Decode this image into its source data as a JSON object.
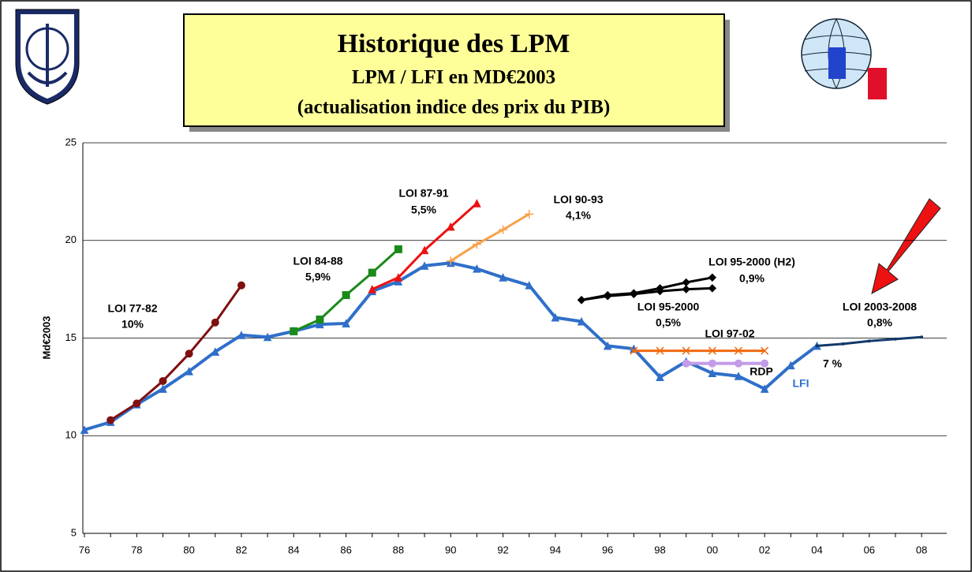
{
  "chart_data": {
    "type": "line",
    "title": "Historique des LPM",
    "subtitle": "LPM / LFI en MD€2003",
    "subtitle2": "(actualisation indice des prix du PIB)",
    "y_label": "Md€2003",
    "categories": [
      "76",
      null,
      "78",
      null,
      "80",
      null,
      "82",
      null,
      "84",
      null,
      "86",
      null,
      "88",
      null,
      "90",
      null,
      "92",
      null,
      "94",
      null,
      "96",
      null,
      "98",
      null,
      "00",
      null,
      "02",
      null,
      "04",
      null,
      "06",
      null,
      "08"
    ],
    "ylim": [
      5,
      25
    ],
    "yticks": [
      5,
      10,
      15,
      20,
      25
    ],
    "grid": true,
    "series": [
      {
        "name": "LFI",
        "color": "#2f6fc9",
        "marker": "triangle",
        "width": 4,
        "values": [
          10.3,
          10.7,
          11.6,
          12.4,
          13.3,
          14.3,
          15.15,
          15.05,
          15.35,
          15.7,
          15.75,
          17.4,
          17.9,
          18.7,
          18.85,
          18.55,
          18.1,
          17.7,
          16.05,
          15.85,
          14.6,
          14.45,
          13.0,
          13.8,
          13.2,
          13.05,
          12.4,
          13.6,
          14.6,
          null,
          null,
          null,
          null
        ]
      },
      {
        "name": "LOI 77-82",
        "rate": "10%",
        "color": "#7f1010",
        "marker": "circle",
        "width": 3,
        "values": [
          null,
          10.8,
          11.65,
          12.8,
          14.2,
          15.8,
          17.7,
          null,
          null,
          null,
          null,
          null,
          null,
          null,
          null,
          null,
          null,
          null,
          null,
          null,
          null,
          null,
          null,
          null,
          null,
          null,
          null,
          null,
          null,
          null,
          null,
          null,
          null
        ]
      },
      {
        "name": "LOI 84-88",
        "rate": "5,9%",
        "color": "#1a8a1a",
        "marker": "square",
        "width": 3,
        "values": [
          null,
          null,
          null,
          null,
          null,
          null,
          null,
          null,
          15.35,
          15.95,
          17.2,
          18.35,
          19.55,
          null,
          null,
          null,
          null,
          null,
          null,
          null,
          null,
          null,
          null,
          null,
          null,
          null,
          null,
          null,
          null,
          null,
          null,
          null,
          null
        ]
      },
      {
        "name": "LOI 87-91",
        "rate": "5,5%",
        "color": "#ee1111",
        "marker": "triangle",
        "width": 3,
        "values": [
          null,
          null,
          null,
          null,
          null,
          null,
          null,
          null,
          null,
          null,
          null,
          17.5,
          18.1,
          19.5,
          20.7,
          21.9,
          null,
          null,
          null,
          null,
          null,
          null,
          null,
          null,
          null,
          null,
          null,
          null,
          null,
          null,
          null,
          null,
          null
        ]
      },
      {
        "name": "LOI 90-93",
        "rate": "4,1%",
        "color": "#f7a24a",
        "marker": "plus",
        "width": 3,
        "values": [
          null,
          null,
          null,
          null,
          null,
          null,
          null,
          null,
          null,
          null,
          null,
          null,
          null,
          null,
          18.95,
          19.8,
          20.55,
          21.35,
          null,
          null,
          null,
          null,
          null,
          null,
          null,
          null,
          null,
          null,
          null,
          null,
          null,
          null,
          null
        ]
      },
      {
        "name": "LOI 95-2000 (H2)",
        "rate": "0,9%",
        "color": "#000000",
        "marker": "diamond",
        "width": 3,
        "values": [
          null,
          null,
          null,
          null,
          null,
          null,
          null,
          null,
          null,
          null,
          null,
          null,
          null,
          null,
          null,
          null,
          null,
          null,
          null,
          16.95,
          17.2,
          17.3,
          17.55,
          17.85,
          18.1,
          null,
          null,
          null,
          null,
          null,
          null,
          null,
          null
        ]
      },
      {
        "name": "LOI 95-2000",
        "rate": "0,5%",
        "color": "#000000",
        "marker": "diamond",
        "width": 3,
        "values": [
          null,
          null,
          null,
          null,
          null,
          null,
          null,
          null,
          null,
          null,
          null,
          null,
          null,
          null,
          null,
          null,
          null,
          null,
          null,
          16.95,
          17.15,
          17.25,
          17.4,
          17.5,
          17.55,
          null,
          null,
          null,
          null,
          null,
          null,
          null,
          null
        ]
      },
      {
        "name": "LOI 97-02",
        "color": "#f06a10",
        "marker": "x",
        "width": 3,
        "values": [
          null,
          null,
          null,
          null,
          null,
          null,
          null,
          null,
          null,
          null,
          null,
          null,
          null,
          null,
          null,
          null,
          null,
          null,
          null,
          null,
          null,
          14.35,
          14.35,
          14.35,
          14.35,
          14.35,
          14.35,
          null,
          null,
          null,
          null,
          null,
          null
        ]
      },
      {
        "name": "RDP",
        "color": "#c39be8",
        "marker": "circle",
        "width": 4,
        "values": [
          null,
          null,
          null,
          null,
          null,
          null,
          null,
          null,
          null,
          null,
          null,
          null,
          null,
          null,
          null,
          null,
          null,
          null,
          null,
          null,
          null,
          null,
          null,
          13.7,
          13.7,
          13.7,
          13.7,
          null,
          null,
          null,
          null,
          null,
          null
        ]
      },
      {
        "name": "LOI 2003-2008",
        "rate": "0,8%",
        "color": "#123a6a",
        "marker": "none",
        "width": 3,
        "values": [
          null,
          null,
          null,
          null,
          null,
          null,
          null,
          null,
          null,
          null,
          null,
          null,
          null,
          null,
          null,
          null,
          null,
          null,
          null,
          null,
          null,
          null,
          null,
          null,
          null,
          null,
          null,
          null,
          14.6,
          14.7,
          14.85,
          14.95,
          15.05
        ]
      }
    ],
    "annotations": [
      "7 %"
    ]
  }
}
